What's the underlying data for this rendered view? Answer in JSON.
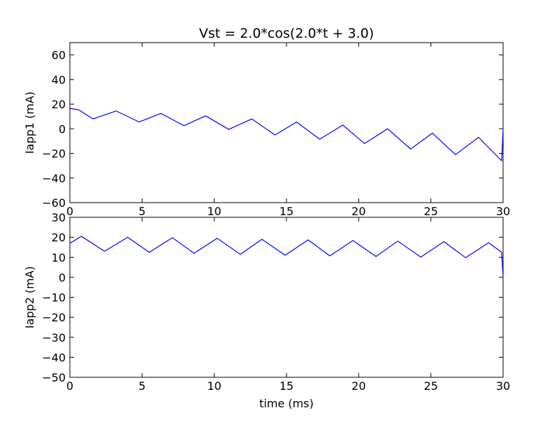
{
  "chart_data": [
    {
      "type": "line",
      "title": "Vst = 2.0*cos(2.0*t + 3.0)",
      "xlabel": "",
      "ylabel": "Iapp1 (mA)",
      "xlim": [
        0,
        30
      ],
      "ylim": [
        -60,
        70
      ],
      "xticks": [
        "0",
        "5",
        "10",
        "15",
        "20",
        "25",
        "30"
      ],
      "yticks": [
        "−60",
        "−40",
        "−20",
        "0",
        "20",
        "40",
        "60"
      ],
      "x": [
        0,
        0.6,
        1.6,
        3.2,
        4.8,
        6.3,
        7.9,
        9.4,
        11.0,
        12.6,
        14.2,
        15.7,
        17.3,
        18.9,
        20.4,
        22.0,
        23.6,
        25.1,
        26.7,
        28.3,
        29.9,
        30.0
      ],
      "y": [
        16.5,
        15.5,
        8.0,
        14.5,
        5.5,
        12.5,
        2.5,
        10.5,
        -0.5,
        8.0,
        -5.0,
        5.5,
        -8.5,
        3.0,
        -12.0,
        0.0,
        -16.5,
        -3.5,
        -21.0,
        -7.0,
        -26.0,
        0.0
      ],
      "color": "#0000ff",
      "grid": false
    },
    {
      "type": "line",
      "title": "",
      "xlabel": "time (ms)",
      "ylabel": "Iapp2 (mA)",
      "xlim": [
        0,
        30
      ],
      "ylim": [
        -50,
        30
      ],
      "xticks": [
        "0",
        "5",
        "10",
        "15",
        "20",
        "25",
        "30"
      ],
      "yticks": [
        "−50",
        "−40",
        "−30",
        "−20",
        "−10",
        "0",
        "10",
        "20",
        "30"
      ],
      "x": [
        0,
        0.8,
        2.4,
        4.0,
        5.5,
        7.1,
        8.6,
        10.2,
        11.8,
        13.3,
        14.9,
        16.5,
        18.0,
        19.6,
        21.2,
        22.7,
        24.3,
        25.9,
        27.4,
        29.0,
        29.9,
        30.0
      ],
      "y": [
        17.0,
        20.5,
        13.0,
        20.0,
        12.5,
        19.8,
        12.0,
        19.5,
        11.5,
        19.0,
        11.0,
        18.7,
        10.7,
        18.4,
        10.4,
        18.1,
        10.1,
        17.8,
        9.8,
        17.3,
        12.5,
        0.0
      ],
      "color": "#0000ff",
      "grid": false
    }
  ]
}
